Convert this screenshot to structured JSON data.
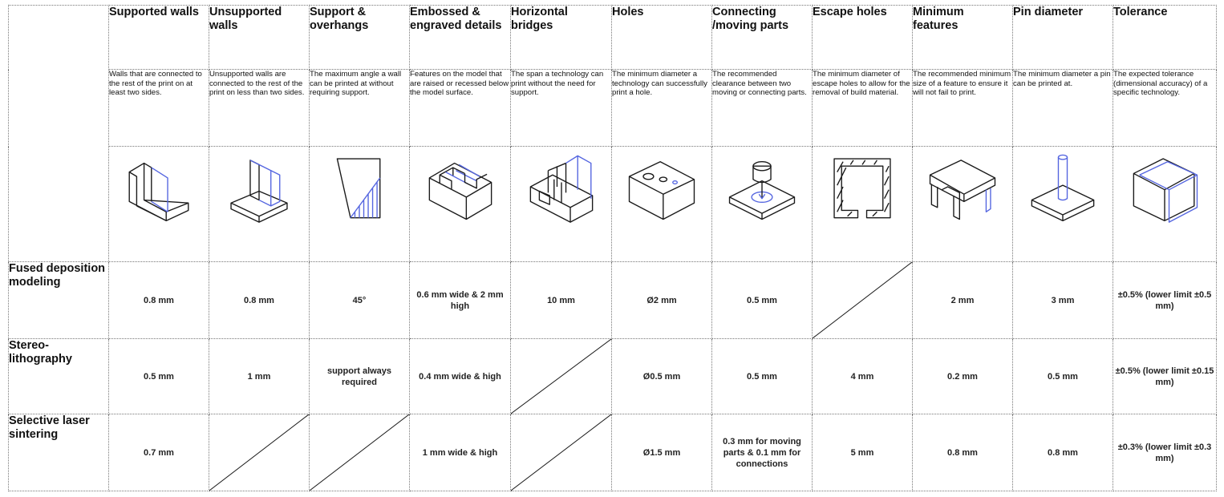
{
  "columns": [
    {
      "title": "Supported walls",
      "desc": "Walls that are connected to the rest of the print on at least two sides.",
      "icon": "supported-walls-icon"
    },
    {
      "title": "Unsupported walls",
      "desc": "Unsupported walls are connected to the rest of the print on less than two sides.",
      "icon": "unsupported-walls-icon"
    },
    {
      "title": "Support & overhangs",
      "desc": "The maximum angle a wall can be printed at without requiring support.",
      "icon": "overhang-icon"
    },
    {
      "title": "Embossed & engraved details",
      "desc": "Features on the model that are raised or recessed below the model surface.",
      "icon": "embossed-details-icon"
    },
    {
      "title": "Horizontal bridges",
      "desc": "The span a technology can print without the need for support.",
      "icon": "bridges-icon"
    },
    {
      "title": "Holes",
      "desc": "The minimum diameter a technology can successfully print a hole.",
      "icon": "holes-icon"
    },
    {
      "title": "Connecting /moving parts",
      "desc": "The recommended clearance between two moving or connecting parts.",
      "icon": "moving-parts-icon"
    },
    {
      "title": "Escape holes",
      "desc": "The minimum diameter of escape holes to allow for the removal of build material.",
      "icon": "escape-holes-icon"
    },
    {
      "title": "Minimum features",
      "desc": "The recommended minimum size of a feature to ensure it will not fail to print.",
      "icon": "minimum-features-icon"
    },
    {
      "title": "Pin diameter",
      "desc": "The minimum diameter a pin can be printed at.",
      "icon": "pin-icon"
    },
    {
      "title": "Tolerance",
      "desc": "The expected tolerance (dimensional accuracy) of a specific technology.",
      "icon": "tolerance-cube-icon"
    }
  ],
  "rows": [
    {
      "label": "Fused deposition modeling",
      "values": [
        "0.8 mm",
        "0.8 mm",
        "45°",
        "0.6 mm wide & 2 mm high",
        "10 mm",
        "Ø2 mm",
        "0.5 mm",
        null,
        "2 mm",
        "3 mm",
        "±0.5% (lower limit ±0.5 mm)"
      ]
    },
    {
      "label": "Stereo-lithography",
      "values": [
        "0.5 mm",
        "1 mm",
        "support always required",
        "0.4 mm wide & high",
        null,
        "Ø0.5 mm",
        "0.5 mm",
        "4 mm",
        "0.2 mm",
        "0.5 mm",
        "±0.5% (lower limit ±0.15 mm)"
      ]
    },
    {
      "label": "Selective laser sintering",
      "values": [
        "0.7 mm",
        null,
        null,
        "1 mm wide & high",
        null,
        "Ø1.5 mm",
        "0.3 mm for moving parts & 0.1 mm for connections",
        "5 mm",
        "0.8 mm",
        "0.8 mm",
        "±0.3% (lower limit ±0.3 mm)"
      ]
    }
  ],
  "not_applicable_marker": "diagonal-slash"
}
